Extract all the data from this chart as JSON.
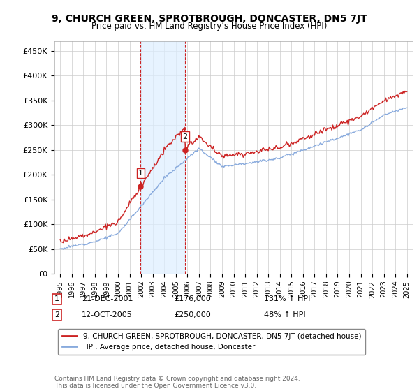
{
  "title": "9, CHURCH GREEN, SPROTBROUGH, DONCASTER, DN5 7JT",
  "subtitle": "Price paid vs. HM Land Registry’s House Price Index (HPI)",
  "hpi_color": "#88aadd",
  "price_color": "#cc2222",
  "vline_color": "#cc2222",
  "shade_color": "#ddeeff",
  "transaction1": {
    "date": "21-DEC-2001",
    "price": 176000,
    "hpi_pct": "131%",
    "label": "1"
  },
  "transaction2": {
    "date": "12-OCT-2005",
    "price": 250000,
    "hpi_pct": "48%",
    "label": "2"
  },
  "legend_line1": "9, CHURCH GREEN, SPROTBROUGH, DONCASTER, DN5 7JT (detached house)",
  "legend_line2": "HPI: Average price, detached house, Doncaster",
  "footer": "Contains HM Land Registry data © Crown copyright and database right 2024.\nThis data is licensed under the Open Government Licence v3.0.",
  "ylim": [
    0,
    470000
  ],
  "yticks": [
    0,
    50000,
    100000,
    150000,
    200000,
    250000,
    300000,
    350000,
    400000,
    450000
  ],
  "ytick_labels": [
    "£0",
    "£50K",
    "£100K",
    "£150K",
    "£200K",
    "£250K",
    "£300K",
    "£350K",
    "£400K",
    "£450K"
  ],
  "t1_year": 2001.96,
  "t2_year": 2005.79,
  "t1_price": 176000,
  "t2_price": 250000
}
